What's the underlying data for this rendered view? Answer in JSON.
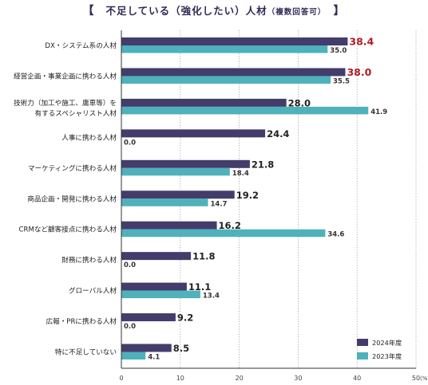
{
  "chart_data": {
    "type": "bar",
    "title_open": "【",
    "title": "不足している（強化したい）人材",
    "subtitle": "（複数回答可）",
    "title_close": "】",
    "categories": [
      [
        "DX・システム系の人材"
      ],
      [
        "経営企画・事業企画に携わる人材"
      ],
      [
        "技術力（加工や施工、庸車等）を",
        "有するスペシャリスト人材"
      ],
      [
        "人事に携わる人材"
      ],
      [
        "マーケティングに携わる人材"
      ],
      [
        "商品企画・開発に携わる人材"
      ],
      [
        "CRMなど顧客接点に携わる人材"
      ],
      [
        "財務に携わる人材"
      ],
      [
        "グローバル人材"
      ],
      [
        "広報・PRに携わる人材"
      ],
      [
        "特に不足していない"
      ]
    ],
    "series": [
      {
        "name": "2024年度",
        "color": "#433d6b",
        "values": [
          38.4,
          38.0,
          28.0,
          24.4,
          21.8,
          19.2,
          16.2,
          11.8,
          11.1,
          9.2,
          8.5
        ],
        "labels": [
          "38.4",
          "38.0",
          "28.0",
          "24.4",
          "21.8",
          "19.2",
          "16.2",
          "11.8",
          "11.1",
          "9.2",
          "8.5"
        ]
      },
      {
        "name": "2023年度",
        "color": "#4fb1bb",
        "values": [
          35.0,
          35.5,
          41.9,
          0.0,
          18.4,
          14.7,
          34.6,
          0.0,
          13.4,
          0.0,
          4.1
        ],
        "labels": [
          "35.0",
          "35.5",
          "41.9",
          "0.0",
          "18.4",
          "14.7",
          "34.6",
          "0.0",
          "13.4",
          "0.0",
          "4.1"
        ]
      }
    ],
    "highlight_color": "#b01c24",
    "highlight_indices": [
      0,
      1
    ],
    "xlim": [
      0,
      50
    ],
    "xticks": [
      0,
      10,
      20,
      30,
      40,
      50
    ],
    "xtick_labels": [
      "0",
      "10",
      "20",
      "30",
      "40",
      "50"
    ],
    "x_unit": "(%)",
    "grid": "vertical dotted",
    "legend_position": "bottom-right"
  }
}
